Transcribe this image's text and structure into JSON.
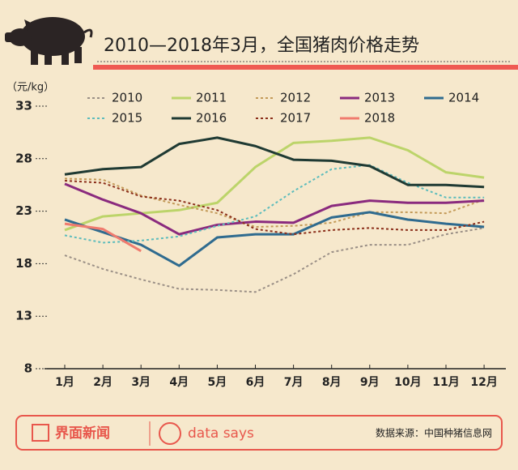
{
  "chart_data": {
    "type": "line",
    "title": "2010—2018年3月，全国猪肉价格走势",
    "y_label": "（元/kg）",
    "categories": [
      "1月",
      "2月",
      "3月",
      "4月",
      "5月",
      "6月",
      "7月",
      "8月",
      "9月",
      "10月",
      "11月",
      "12月"
    ],
    "ylim": [
      8,
      33
    ],
    "yticks": [
      8,
      13,
      18,
      23,
      28,
      33
    ],
    "series": [
      {
        "name": "2010",
        "color": "#9a8f86",
        "dash": true,
        "values": [
          18.8,
          17.5,
          16.5,
          15.6,
          15.5,
          15.3,
          17.0,
          19.1,
          19.8,
          19.8,
          20.8,
          21.4
        ]
      },
      {
        "name": "2011",
        "color": "#bcd46a",
        "dash": false,
        "values": [
          21.2,
          22.5,
          22.8,
          23.1,
          23.8,
          27.2,
          29.5,
          29.7,
          30.0,
          28.8,
          26.7,
          26.2
        ]
      },
      {
        "name": "2012",
        "color": "#c39a58",
        "dash": true,
        "values": [
          26.1,
          26.0,
          24.5,
          23.6,
          22.8,
          21.5,
          21.6,
          21.9,
          22.9,
          22.9,
          22.8,
          24.1
        ]
      },
      {
        "name": "2013",
        "color": "#8a2a7e",
        "dash": false,
        "values": [
          25.6,
          24.1,
          22.8,
          20.8,
          21.7,
          22.0,
          21.9,
          23.5,
          24.0,
          23.8,
          23.8,
          24.0
        ]
      },
      {
        "name": "2014",
        "color": "#2f6b8f",
        "dash": false,
        "values": [
          22.2,
          21.0,
          19.8,
          17.8,
          20.5,
          20.8,
          20.8,
          22.4,
          22.9,
          22.2,
          21.8,
          21.5
        ]
      },
      {
        "name": "2015",
        "color": "#5cbcbc",
        "dash": true,
        "values": [
          20.7,
          20.0,
          20.2,
          20.6,
          21.6,
          22.5,
          24.9,
          27.0,
          27.4,
          25.7,
          24.3,
          24.3
        ]
      },
      {
        "name": "2016",
        "color": "#1f3a33",
        "dash": false,
        "values": [
          26.5,
          27.0,
          27.2,
          29.4,
          30.0,
          29.2,
          27.9,
          27.8,
          27.3,
          25.5,
          25.5,
          25.3
        ]
      },
      {
        "name": "2017",
        "color": "#8b2e1a",
        "dash": true,
        "values": [
          25.9,
          25.7,
          24.4,
          24.0,
          23.1,
          21.3,
          20.8,
          21.2,
          21.4,
          21.2,
          21.2,
          22.0
        ]
      },
      {
        "name": "2018",
        "color": "#f07b6e",
        "dash": false,
        "values": [
          21.8,
          21.3,
          19.2,
          null,
          null,
          null,
          null,
          null,
          null,
          null,
          null,
          null
        ]
      }
    ]
  },
  "footer": {
    "brand": "界面新闻",
    "tagline": "data says",
    "source": "数据来源：中国种猪信息网"
  }
}
